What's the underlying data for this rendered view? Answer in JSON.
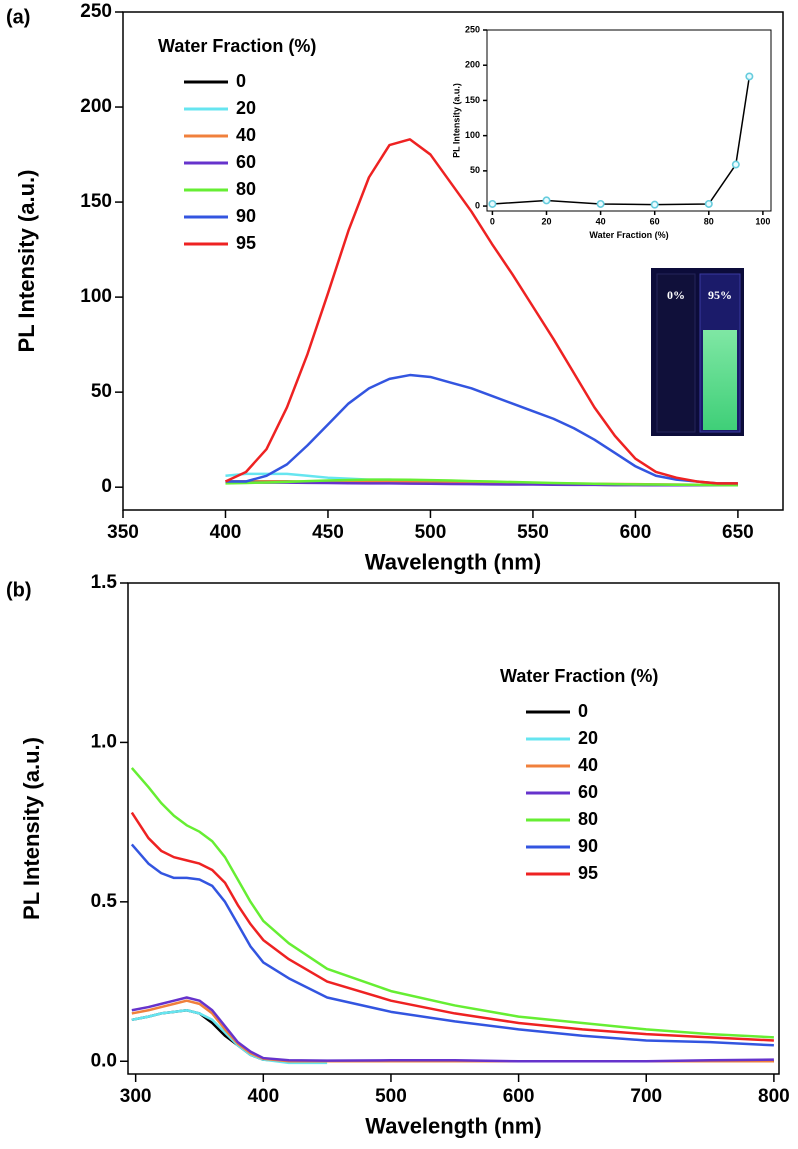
{
  "chart_data": [
    {
      "type": "line",
      "panel_label": "(a)",
      "xlabel": "Wavelength (nm)",
      "ylabel": "PL Intensity (a.u.)",
      "xlim": [
        350,
        672
      ],
      "ylim": [
        -12,
        250
      ],
      "xticks": [
        350,
        400,
        450,
        500,
        550,
        600,
        650
      ],
      "yticks": [
        0,
        50,
        100,
        150,
        200,
        250
      ],
      "legend": "upper left",
      "legend_title": "Water Fraction (%)",
      "x": [
        400,
        410,
        420,
        430,
        440,
        450,
        460,
        470,
        480,
        490,
        500,
        510,
        520,
        530,
        540,
        550,
        560,
        570,
        580,
        590,
        600,
        610,
        620,
        630,
        640,
        650
      ],
      "series": [
        {
          "name": "0",
          "color": "#000000",
          "values": [
            3,
            3,
            3,
            3,
            2.8,
            2.6,
            2.5,
            2.4,
            2.3,
            2.2,
            2.1,
            2,
            1.9,
            1.8,
            1.7,
            1.6,
            1.5,
            1.4,
            1.3,
            1.2,
            1.2,
            1.1,
            1.1,
            1,
            1,
            1
          ]
        },
        {
          "name": "20",
          "color": "#66e5f0",
          "values": [
            6,
            7,
            7,
            7,
            6,
            5,
            4.5,
            4,
            4,
            3.5,
            3.2,
            3,
            2.8,
            2.6,
            2.4,
            2.2,
            2,
            1.8,
            1.6,
            1.5,
            1.4,
            1.3,
            1.2,
            1.1,
            1,
            1
          ]
        },
        {
          "name": "40",
          "color": "#f0803c",
          "values": [
            3,
            3,
            3,
            3,
            3,
            3,
            3,
            3,
            3,
            3,
            3,
            2.8,
            2.6,
            2.5,
            2.4,
            2.2,
            2,
            1.9,
            1.8,
            1.7,
            1.6,
            1.5,
            1.4,
            1.3,
            1.2,
            1.2
          ]
        },
        {
          "name": "60",
          "color": "#6633cc",
          "values": [
            2.5,
            2.5,
            2.4,
            2.4,
            2.3,
            2.2,
            2.1,
            2,
            2,
            1.9,
            1.8,
            1.7,
            1.6,
            1.5,
            1.4,
            1.4,
            1.3,
            1.2,
            1.2,
            1.1,
            1.1,
            1,
            1,
            1,
            1,
            1
          ]
        },
        {
          "name": "80",
          "color": "#66ee33",
          "values": [
            2,
            2.2,
            2.5,
            2.8,
            3.2,
            3.5,
            3.8,
            4,
            4,
            3.9,
            3.7,
            3.5,
            3.2,
            3,
            2.7,
            2.5,
            2.2,
            2,
            1.8,
            1.6,
            1.5,
            1.4,
            1.3,
            1.2,
            1.1,
            1
          ]
        },
        {
          "name": "90",
          "color": "#3355e0",
          "values": [
            3,
            3,
            6,
            12,
            22,
            33,
            44,
            52,
            57,
            59,
            58,
            55,
            52,
            48,
            44,
            40,
            36,
            31,
            25,
            18,
            11,
            6,
            4,
            3,
            2,
            2
          ]
        },
        {
          "name": "95",
          "color": "#ee2222",
          "values": [
            3,
            8,
            20,
            42,
            70,
            102,
            135,
            163,
            180,
            183,
            175,
            160,
            145,
            128,
            112,
            95,
            78,
            60,
            42,
            27,
            15,
            8,
            5,
            3,
            2,
            2
          ]
        }
      ]
    },
    {
      "type": "line",
      "markers": true,
      "marker_color": "#66ccdd",
      "xlabel": "Water Fraction (%)",
      "ylabel": "PL Intensity (a.u.)",
      "xlim": [
        -2,
        103
      ],
      "ylim": [
        -7,
        250
      ],
      "xticks": [
        0,
        20,
        40,
        60,
        80,
        100
      ],
      "yticks": [
        0,
        50,
        100,
        150,
        200,
        250
      ],
      "x": [
        0,
        20,
        40,
        60,
        80,
        90,
        95
      ],
      "series": [
        {
          "color": "#000000",
          "values": [
            3,
            8,
            3,
            2,
            3,
            59,
            184
          ]
        }
      ],
      "annotations": [
        "0%",
        "95%"
      ]
    },
    {
      "type": "line",
      "panel_label": "(b)",
      "xlabel": "Wavelength (nm)",
      "ylabel": "PL Intensity (a.u.)",
      "xlim": [
        294,
        804
      ],
      "ylim": [
        -0.04,
        1.5
      ],
      "xticks": [
        300,
        400,
        500,
        600,
        700,
        800
      ],
      "yticks": [
        {
          "value": 0,
          "label": "0.0"
        },
        {
          "value": 0.5,
          "label": "0.5"
        },
        {
          "value": 1,
          "label": "1.0"
        },
        {
          "value": 1.5,
          "label": "1.5"
        }
      ],
      "legend": "upper right",
      "legend_title": "Water Fraction (%)",
      "x": [
        297,
        310,
        320,
        330,
        340,
        350,
        360,
        370,
        380,
        390,
        400,
        420,
        450,
        500,
        550,
        600,
        650,
        700,
        750,
        800
      ],
      "series": [
        {
          "name": "0",
          "color": "#000000",
          "values": [
            0.13,
            0.14,
            0.15,
            0.155,
            0.16,
            0.15,
            0.12,
            0.08,
            0.05,
            0.02,
            0.005,
            0,
            0,
            0,
            0,
            0,
            0,
            0,
            0,
            0
          ]
        },
        {
          "name": "20",
          "color": "#66e5f0",
          "values": [
            0.13,
            0.14,
            0.15,
            0.155,
            0.16,
            0.15,
            0.13,
            0.09,
            0.05,
            0.02,
            0.005,
            -0.005,
            -0.005,
            null,
            null,
            null,
            null,
            null,
            null,
            null
          ]
        },
        {
          "name": "40",
          "color": "#f0803c",
          "values": [
            0.15,
            0.16,
            0.17,
            0.18,
            0.19,
            0.18,
            0.15,
            0.1,
            0.055,
            0.025,
            0.008,
            0,
            0,
            0,
            0,
            0,
            0,
            0,
            0,
            0
          ]
        },
        {
          "name": "60",
          "color": "#6633cc",
          "values": [
            0.16,
            0.17,
            0.18,
            0.19,
            0.2,
            0.19,
            0.16,
            0.11,
            0.06,
            0.03,
            0.01,
            0.003,
            0.002,
            0.003,
            0.003,
            0,
            0,
            0,
            0.003,
            0.005
          ]
        },
        {
          "name": "80",
          "color": "#66ee33",
          "values": [
            0.92,
            0.86,
            0.81,
            0.77,
            0.74,
            0.72,
            0.69,
            0.64,
            0.57,
            0.5,
            0.44,
            0.37,
            0.29,
            0.22,
            0.175,
            0.14,
            0.12,
            0.1,
            0.085,
            0.075
          ]
        },
        {
          "name": "90",
          "color": "#3355e0",
          "values": [
            0.68,
            0.62,
            0.59,
            0.575,
            0.575,
            0.57,
            0.55,
            0.5,
            0.43,
            0.36,
            0.31,
            0.26,
            0.2,
            0.155,
            0.125,
            0.1,
            0.08,
            0.065,
            0.06,
            0.05
          ]
        },
        {
          "name": "95",
          "color": "#ee2222",
          "values": [
            0.78,
            0.7,
            0.66,
            0.64,
            0.63,
            0.62,
            0.6,
            0.56,
            0.49,
            0.43,
            0.38,
            0.32,
            0.25,
            0.19,
            0.15,
            0.12,
            0.1,
            0.085,
            0.075,
            0.065
          ]
        }
      ]
    }
  ]
}
